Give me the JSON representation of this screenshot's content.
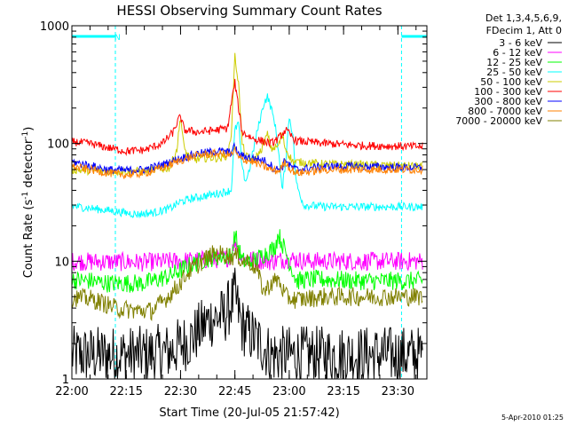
{
  "chart_data": {
    "type": "line",
    "title": "HESSI Observing Summary Count Rates",
    "xlabel": "Start Time (20-Jul-05 21:57:42)",
    "ylabel_main": "Count Rate (s",
    "ylabel_sup1": "-1",
    "ylabel_mid": " detector",
    "ylabel_sup2": "-1",
    "ylabel_end": ")",
    "y_scale": "log",
    "xlim_minutes": [
      0,
      98
    ],
    "ylim": [
      1,
      1000
    ],
    "x_ticks": [
      {
        "label": "22:00",
        "t": 0
      },
      {
        "label": "22:15",
        "t": 15
      },
      {
        "label": "22:30",
        "t": 30
      },
      {
        "label": "22:45",
        "t": 45
      },
      {
        "label": "23:00",
        "t": 60
      },
      {
        "label": "23:15",
        "t": 75
      },
      {
        "label": "23:30",
        "t": 90
      }
    ],
    "y_ticks": [
      {
        "label": "1",
        "v": 1
      },
      {
        "label": "10",
        "v": 10
      },
      {
        "label": "100",
        "v": 100
      },
      {
        "label": "1000",
        "v": 1000
      }
    ],
    "legend_header": [
      "Det 1,3,4,5,6,9,",
      "FDecim 1, Att 0"
    ],
    "night_marks": [
      {
        "start": -3,
        "end": 12,
        "label": "N"
      },
      {
        "start": 91,
        "end": 101,
        "label": ""
      }
    ],
    "series": [
      {
        "name": "3 - 6 keV",
        "color": "#000000",
        "points": [
          [
            -2,
            1.6
          ],
          [
            10,
            1.6
          ],
          [
            20,
            1.6
          ],
          [
            27,
            1.7
          ],
          [
            33,
            2.2
          ],
          [
            38,
            3.2
          ],
          [
            42,
            3.4
          ],
          [
            45,
            5
          ],
          [
            47,
            2.8
          ],
          [
            52,
            2
          ],
          [
            55,
            1.6
          ],
          [
            60,
            1.6
          ],
          [
            65,
            1.6
          ],
          [
            70,
            1.6
          ],
          [
            80,
            1.6
          ],
          [
            90,
            1.6
          ],
          [
            97,
            1.6
          ]
        ]
      },
      {
        "name": "6 - 12 keV",
        "color": "#ff00ff",
        "points": [
          [
            -2,
            10
          ],
          [
            20,
            9.8
          ],
          [
            35,
            10.2
          ],
          [
            42,
            10.5
          ],
          [
            44,
            11
          ],
          [
            45,
            15
          ],
          [
            47,
            10.5
          ],
          [
            55,
            10
          ],
          [
            60,
            10.5
          ],
          [
            65,
            10
          ],
          [
            80,
            10
          ],
          [
            97,
            10
          ]
        ]
      },
      {
        "name": "12 - 25 keV",
        "color": "#00ff00",
        "points": [
          [
            -2,
            7
          ],
          [
            5,
            6.8
          ],
          [
            10,
            6.5
          ],
          [
            20,
            6.5
          ],
          [
            27,
            7.5
          ],
          [
            32,
            9
          ],
          [
            37,
            10.5
          ],
          [
            41,
            11
          ],
          [
            44,
            11
          ],
          [
            45,
            17
          ],
          [
            47,
            10
          ],
          [
            50,
            10
          ],
          [
            54,
            12
          ],
          [
            56,
            13
          ],
          [
            57,
            17
          ],
          [
            59,
            12
          ],
          [
            62,
            6.8
          ],
          [
            65,
            7
          ],
          [
            70,
            7
          ],
          [
            80,
            6.8
          ],
          [
            97,
            6.8
          ]
        ]
      },
      {
        "name": "25 - 50 keV",
        "color": "#00ffff",
        "points": [
          [
            -2,
            30
          ],
          [
            10,
            27
          ],
          [
            18,
            25
          ],
          [
            23,
            26
          ],
          [
            27,
            28
          ],
          [
            30,
            32
          ],
          [
            33,
            34
          ],
          [
            37,
            36
          ],
          [
            41,
            38
          ],
          [
            44,
            40
          ],
          [
            45,
            130
          ],
          [
            46,
            150
          ],
          [
            47,
            60
          ],
          [
            48,
            48
          ],
          [
            49,
            60
          ],
          [
            51,
            120
          ],
          [
            53,
            220
          ],
          [
            54,
            250
          ],
          [
            55,
            200
          ],
          [
            56,
            150
          ],
          [
            57,
            90
          ],
          [
            58,
            40
          ],
          [
            59,
            70
          ],
          [
            60,
            170
          ],
          [
            61,
            120
          ],
          [
            62,
            45
          ],
          [
            64,
            30
          ],
          [
            70,
            29
          ],
          [
            80,
            29
          ],
          [
            97,
            29
          ]
        ]
      },
      {
        "name": "50 - 100 keV",
        "color": "#cccc00",
        "points": [
          [
            -2,
            60
          ],
          [
            10,
            58
          ],
          [
            20,
            58
          ],
          [
            27,
            62
          ],
          [
            29,
            90
          ],
          [
            30,
            170
          ],
          [
            31,
            90
          ],
          [
            33,
            72
          ],
          [
            38,
            76
          ],
          [
            41,
            75
          ],
          [
            43,
            80
          ],
          [
            44,
            120
          ],
          [
            45,
            550
          ],
          [
            46,
            330
          ],
          [
            47,
            100
          ],
          [
            48,
            78
          ],
          [
            50,
            72
          ],
          [
            52,
            85
          ],
          [
            54,
            120
          ],
          [
            55,
            90
          ],
          [
            57,
            95
          ],
          [
            58,
            120
          ],
          [
            59,
            90
          ],
          [
            61,
            70
          ],
          [
            70,
            67
          ],
          [
            80,
            66
          ],
          [
            97,
            64
          ]
        ]
      },
      {
        "name": "100 - 300 keV",
        "color": "#ff0000",
        "points": [
          [
            -2,
            105
          ],
          [
            5,
            100
          ],
          [
            10,
            92
          ],
          [
            15,
            86
          ],
          [
            20,
            88
          ],
          [
            25,
            100
          ],
          [
            28,
            125
          ],
          [
            29,
            150
          ],
          [
            30,
            170
          ],
          [
            31,
            130
          ],
          [
            35,
            125
          ],
          [
            40,
            130
          ],
          [
            43,
            135
          ],
          [
            44,
            220
          ],
          [
            45,
            330
          ],
          [
            46,
            200
          ],
          [
            47,
            125
          ],
          [
            50,
            110
          ],
          [
            55,
            100
          ],
          [
            57,
            110
          ],
          [
            59,
            130
          ],
          [
            60,
            120
          ],
          [
            62,
            105
          ],
          [
            70,
            100
          ],
          [
            80,
            96
          ],
          [
            97,
            94
          ]
        ]
      },
      {
        "name": "300 - 800 keV",
        "color": "#0000ff",
        "points": [
          [
            -2,
            72
          ],
          [
            5,
            65
          ],
          [
            10,
            60
          ],
          [
            15,
            59
          ],
          [
            20,
            60
          ],
          [
            25,
            66
          ],
          [
            30,
            75
          ],
          [
            35,
            82
          ],
          [
            40,
            86
          ],
          [
            42,
            85
          ],
          [
            44,
            84
          ],
          [
            45,
            95
          ],
          [
            46,
            80
          ],
          [
            50,
            75
          ],
          [
            53,
            72
          ],
          [
            55,
            65
          ],
          [
            56,
            60
          ],
          [
            58,
            62
          ],
          [
            59,
            75
          ],
          [
            60,
            65
          ],
          [
            62,
            60
          ],
          [
            70,
            64
          ],
          [
            80,
            64
          ],
          [
            97,
            62
          ]
        ]
      },
      {
        "name": "800 - 7000 keV",
        "color": "#ff8000",
        "points": [
          [
            -2,
            65
          ],
          [
            5,
            60
          ],
          [
            10,
            56
          ],
          [
            15,
            54
          ],
          [
            20,
            56
          ],
          [
            25,
            62
          ],
          [
            30,
            72
          ],
          [
            35,
            80
          ],
          [
            40,
            82
          ],
          [
            44,
            80
          ],
          [
            45,
            88
          ],
          [
            46,
            75
          ],
          [
            50,
            70
          ],
          [
            55,
            60
          ],
          [
            57,
            58
          ],
          [
            59,
            70
          ],
          [
            60,
            62
          ],
          [
            62,
            56
          ],
          [
            70,
            60
          ],
          [
            80,
            60
          ],
          [
            97,
            60
          ]
        ]
      },
      {
        "name": "7000 - 20000 keV",
        "color": "#808000",
        "points": [
          [
            -2,
            5
          ],
          [
            5,
            4.8
          ],
          [
            8,
            4.5
          ],
          [
            12,
            4
          ],
          [
            18,
            3.8
          ],
          [
            22,
            3.8
          ],
          [
            25,
            4.5
          ],
          [
            29,
            6
          ],
          [
            32,
            8
          ],
          [
            36,
            10
          ],
          [
            39,
            11.5
          ],
          [
            42,
            11.5
          ],
          [
            44,
            11
          ],
          [
            46,
            11
          ],
          [
            47,
            10
          ],
          [
            49,
            10
          ],
          [
            51,
            8.5
          ],
          [
            53,
            5.5
          ],
          [
            55,
            6.5
          ],
          [
            57,
            7
          ],
          [
            59,
            5
          ],
          [
            62,
            4.7
          ],
          [
            70,
            5
          ],
          [
            80,
            5
          ],
          [
            97,
            5
          ]
        ]
      }
    ],
    "footer": "5-Apr-2010 01:25"
  }
}
